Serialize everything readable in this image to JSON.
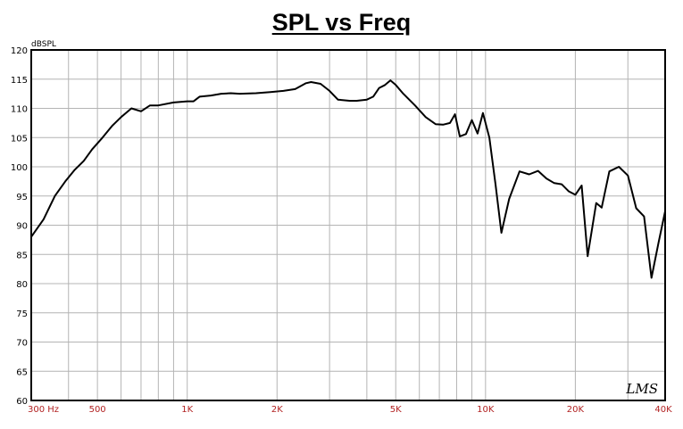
{
  "chart_data": {
    "type": "line",
    "title": "SPL vs Freq",
    "ylabel": "dBSPL",
    "xlabel": "",
    "x_scale": "log",
    "xlim": [
      300,
      40000
    ],
    "ylim": [
      60,
      120
    ],
    "grid": true,
    "y_ticks": [
      "60",
      "65",
      "70",
      "75",
      "80",
      "85",
      "90",
      "95",
      "100",
      "105",
      "110",
      "115",
      "120"
    ],
    "x_tick_labels": [
      {
        "value": 300,
        "label": "300 Hz"
      },
      {
        "value": 500,
        "label": "500"
      },
      {
        "value": 1000,
        "label": "1K"
      },
      {
        "value": 2000,
        "label": "2K"
      },
      {
        "value": 5000,
        "label": "5K"
      },
      {
        "value": 10000,
        "label": "10K"
      },
      {
        "value": 20000,
        "label": "20K"
      },
      {
        "value": 40000,
        "label": "40K"
      }
    ],
    "watermark": "LMS",
    "series": [
      {
        "color": "#000000",
        "x": [
          300,
          330,
          360,
          390,
          420,
          450,
          480,
          520,
          560,
          600,
          650,
          700,
          750,
          800,
          900,
          1000,
          1050,
          1100,
          1200,
          1300,
          1400,
          1500,
          1700,
          1900,
          2100,
          2300,
          2500,
          2600,
          2800,
          3000,
          3200,
          3500,
          3700,
          4000,
          4200,
          4400,
          4600,
          4800,
          5000,
          5300,
          5800,
          6300,
          6800,
          7200,
          7600,
          7900,
          8200,
          8600,
          9000,
          9400,
          9800,
          10300,
          10800,
          11300,
          12000,
          13000,
          14000,
          15000,
          16000,
          17000,
          18000,
          19000,
          20000,
          21000,
          22000,
          23500,
          24500,
          26000,
          28000,
          30000,
          32000,
          34000,
          36000,
          38000,
          40000
        ],
        "y": [
          88,
          91,
          95,
          97.5,
          99.5,
          101,
          103,
          105,
          107,
          108.5,
          110,
          109.5,
          110.5,
          110.5,
          111,
          111.2,
          111.2,
          112,
          112.2,
          112.5,
          112.6,
          112.5,
          112.6,
          112.8,
          113,
          113.3,
          114.3,
          114.5,
          114.2,
          113,
          111.5,
          111.3,
          111.3,
          111.5,
          112,
          113.5,
          114,
          114.8,
          114,
          112.5,
          110.5,
          108.5,
          107.3,
          107.2,
          107.5,
          109,
          105.2,
          105.6,
          108,
          105.7,
          109.2,
          105,
          97,
          88.7,
          94.5,
          99.2,
          98.7,
          99.3,
          98,
          97.2,
          97,
          95.8,
          95.2,
          96.8,
          84.7,
          93.8,
          93,
          99.2,
          100,
          98.5,
          92.9,
          91.5,
          81,
          87,
          92.4
        ]
      }
    ]
  }
}
